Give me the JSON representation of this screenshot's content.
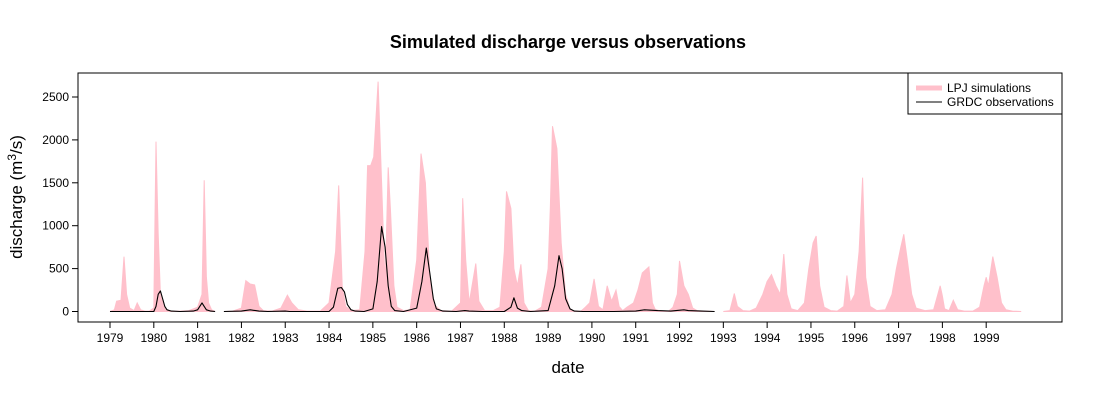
{
  "chart_data": {
    "type": "area",
    "title": "Simulated discharge versus observations",
    "xlabel": "date",
    "ylabel_main": "discharge (m",
    "ylabel_sup": "3",
    "ylabel_end": "/s)",
    "xlim": [
      1979.0,
      2000.0
    ],
    "ylim": [
      0,
      2700
    ],
    "x_ticks": [
      1979,
      1980,
      1981,
      1982,
      1983,
      1984,
      1985,
      1986,
      1987,
      1988,
      1989,
      1990,
      1991,
      1992,
      1993,
      1994,
      1995,
      1996,
      1997,
      1998,
      1999
    ],
    "x_tick_labels": [
      "1979",
      "1980",
      "1981",
      "1982",
      "1983",
      "1984",
      "1985",
      "1986",
      "1987",
      "1988",
      "1989",
      "1990",
      "1991",
      "1992",
      "1993",
      "1994",
      "1995",
      "1996",
      "1997",
      "1998",
      "1999"
    ],
    "y_ticks": [
      0,
      500,
      1000,
      1500,
      2000,
      2500
    ],
    "y_tick_labels": [
      "0",
      "500",
      "1000",
      "1500",
      "2000",
      "2500"
    ],
    "legend": {
      "position": "top-right",
      "entries": [
        {
          "label": "LPJ simulations",
          "color": "#ffc0cb"
        },
        {
          "label": "GRDC observations",
          "color": "#000000"
        }
      ]
    },
    "series": [
      {
        "name": "LPJ simulations",
        "kind": "band",
        "color": "#ffc0cb",
        "segments": [
          [
            [
              1979.0,
              0
            ],
            [
              1979.1,
              20
            ],
            [
              1979.15,
              120
            ],
            [
              1979.25,
              130
            ],
            [
              1979.32,
              640
            ],
            [
              1979.38,
              200
            ],
            [
              1979.45,
              40
            ],
            [
              1979.55,
              10
            ],
            [
              1979.62,
              100
            ],
            [
              1979.7,
              20
            ],
            [
              1979.8,
              5
            ],
            [
              1979.9,
              5
            ],
            [
              1980.0,
              40
            ],
            [
              1980.05,
              1980
            ],
            [
              1980.1,
              900
            ],
            [
              1980.15,
              200
            ],
            [
              1980.25,
              30
            ],
            [
              1980.4,
              5
            ],
            [
              1980.6,
              5
            ],
            [
              1980.8,
              10
            ],
            [
              1981.0,
              50
            ],
            [
              1981.1,
              200
            ],
            [
              1981.15,
              1530
            ],
            [
              1981.2,
              400
            ],
            [
              1981.25,
              100
            ],
            [
              1981.32,
              20
            ],
            [
              1981.4,
              0
            ]
          ],
          [
            [
              1981.6,
              0
            ],
            [
              1981.8,
              5
            ],
            [
              1982.0,
              40
            ],
            [
              1982.1,
              360
            ],
            [
              1982.2,
              320
            ],
            [
              1982.3,
              310
            ],
            [
              1982.4,
              60
            ],
            [
              1982.5,
              10
            ],
            [
              1982.7,
              5
            ],
            [
              1982.9,
              40
            ],
            [
              1983.05,
              190
            ],
            [
              1983.15,
              100
            ],
            [
              1983.3,
              20
            ],
            [
              1983.5,
              5
            ],
            [
              1983.8,
              5
            ],
            [
              1984.0,
              100
            ],
            [
              1984.15,
              700
            ],
            [
              1984.22,
              1470
            ],
            [
              1984.3,
              300
            ],
            [
              1984.38,
              60
            ],
            [
              1984.5,
              10
            ],
            [
              1984.7,
              20
            ],
            [
              1984.82,
              700
            ],
            [
              1984.88,
              1700
            ],
            [
              1984.95,
              1700
            ],
            [
              1985.02,
              1800
            ],
            [
              1985.12,
              2680
            ],
            [
              1985.2,
              1500
            ],
            [
              1985.28,
              300
            ],
            [
              1985.35,
              1680
            ],
            [
              1985.4,
              1200
            ],
            [
              1985.48,
              300
            ],
            [
              1985.55,
              50
            ],
            [
              1985.7,
              10
            ],
            [
              1985.85,
              20
            ],
            [
              1986.0,
              600
            ],
            [
              1986.1,
              1840
            ],
            [
              1986.2,
              1500
            ],
            [
              1986.3,
              400
            ],
            [
              1986.4,
              80
            ],
            [
              1986.55,
              10
            ],
            [
              1986.8,
              5
            ],
            [
              1987.0,
              100
            ],
            [
              1987.05,
              1320
            ],
            [
              1987.12,
              600
            ],
            [
              1987.2,
              100
            ],
            [
              1987.35,
              560
            ],
            [
              1987.42,
              120
            ],
            [
              1987.55,
              10
            ],
            [
              1987.75,
              10
            ],
            [
              1987.9,
              50
            ],
            [
              1988.0,
              700
            ],
            [
              1988.05,
              1400
            ],
            [
              1988.15,
              1200
            ],
            [
              1988.22,
              500
            ],
            [
              1988.3,
              300
            ],
            [
              1988.38,
              550
            ],
            [
              1988.45,
              100
            ],
            [
              1988.55,
              10
            ],
            [
              1988.7,
              5
            ],
            [
              1988.85,
              50
            ],
            [
              1989.0,
              500
            ],
            [
              1989.05,
              1200
            ],
            [
              1989.1,
              2160
            ],
            [
              1989.2,
              1900
            ],
            [
              1989.3,
              800
            ],
            [
              1989.4,
              200
            ],
            [
              1989.5,
              30
            ],
            [
              1989.6,
              5
            ],
            [
              1989.75,
              5
            ],
            [
              1989.85,
              50
            ],
            [
              1989.95,
              100
            ],
            [
              1990.05,
              380
            ],
            [
              1990.15,
              60
            ],
            [
              1990.25,
              20
            ],
            [
              1990.35,
              300
            ],
            [
              1990.45,
              120
            ],
            [
              1990.55,
              250
            ],
            [
              1990.62,
              60
            ],
            [
              1990.7,
              10
            ],
            [
              1990.8,
              50
            ],
            [
              1990.95,
              100
            ],
            [
              1991.05,
              250
            ],
            [
              1991.15,
              450
            ],
            [
              1991.3,
              520
            ],
            [
              1991.38,
              100
            ],
            [
              1991.45,
              20
            ],
            [
              1991.6,
              5
            ],
            [
              1991.75,
              5
            ],
            [
              1991.85,
              50
            ],
            [
              1991.95,
              200
            ],
            [
              1992.0,
              590
            ],
            [
              1992.1,
              300
            ],
            [
              1992.2,
              200
            ],
            [
              1992.3,
              40
            ],
            [
              1992.4,
              10
            ],
            [
              1992.6,
              5
            ],
            [
              1992.8,
              0
            ]
          ],
          [
            [
              1993.0,
              0
            ],
            [
              1993.15,
              10
            ],
            [
              1993.25,
              210
            ],
            [
              1993.32,
              60
            ],
            [
              1993.45,
              10
            ],
            [
              1993.6,
              5
            ],
            [
              1993.75,
              40
            ],
            [
              1993.9,
              200
            ],
            [
              1994.0,
              350
            ],
            [
              1994.1,
              430
            ],
            [
              1994.2,
              300
            ],
            [
              1994.3,
              200
            ],
            [
              1994.38,
              670
            ],
            [
              1994.45,
              200
            ],
            [
              1994.55,
              30
            ],
            [
              1994.7,
              10
            ],
            [
              1994.85,
              100
            ],
            [
              1994.95,
              500
            ],
            [
              1995.05,
              800
            ],
            [
              1995.12,
              880
            ],
            [
              1995.2,
              300
            ],
            [
              1995.3,
              50
            ],
            [
              1995.45,
              10
            ],
            [
              1995.6,
              5
            ],
            [
              1995.75,
              60
            ],
            [
              1995.82,
              420
            ],
            [
              1995.9,
              100
            ],
            [
              1996.0,
              200
            ],
            [
              1996.1,
              700
            ],
            [
              1996.18,
              1560
            ],
            [
              1996.25,
              400
            ],
            [
              1996.35,
              60
            ],
            [
              1996.5,
              10
            ],
            [
              1996.7,
              20
            ],
            [
              1996.85,
              200
            ],
            [
              1996.95,
              500
            ],
            [
              1997.05,
              750
            ],
            [
              1997.12,
              900
            ],
            [
              1997.2,
              600
            ],
            [
              1997.3,
              200
            ],
            [
              1997.4,
              40
            ],
            [
              1997.6,
              10
            ],
            [
              1997.8,
              20
            ],
            [
              1997.95,
              300
            ],
            [
              1998.0,
              180
            ],
            [
              1998.05,
              30
            ],
            [
              1998.15,
              10
            ],
            [
              1998.25,
              130
            ],
            [
              1998.35,
              20
            ],
            [
              1998.5,
              5
            ],
            [
              1998.7,
              5
            ],
            [
              1998.85,
              50
            ],
            [
              1998.95,
              300
            ],
            [
              1999.0,
              400
            ],
            [
              1999.05,
              300
            ],
            [
              1999.15,
              640
            ],
            [
              1999.25,
              400
            ],
            [
              1999.35,
              100
            ],
            [
              1999.45,
              20
            ],
            [
              1999.6,
              5
            ],
            [
              1999.8,
              0
            ]
          ]
        ]
      },
      {
        "name": "GRDC observations",
        "kind": "line",
        "color": "#000000",
        "segments": [
          [
            [
              1979.0,
              0
            ],
            [
              1979.5,
              0
            ],
            [
              1980.0,
              0
            ],
            [
              1980.05,
              60
            ],
            [
              1980.1,
              200
            ],
            [
              1980.15,
              240
            ],
            [
              1980.2,
              150
            ],
            [
              1980.25,
              60
            ],
            [
              1980.3,
              20
            ],
            [
              1980.4,
              5
            ],
            [
              1980.6,
              0
            ],
            [
              1980.9,
              5
            ],
            [
              1981.0,
              20
            ],
            [
              1981.1,
              100
            ],
            [
              1981.15,
              60
            ],
            [
              1981.2,
              20
            ],
            [
              1981.3,
              5
            ],
            [
              1981.4,
              0
            ]
          ],
          [
            [
              1981.6,
              0
            ],
            [
              1982.0,
              5
            ],
            [
              1982.2,
              20
            ],
            [
              1982.4,
              5
            ],
            [
              1982.6,
              0
            ],
            [
              1983.0,
              5
            ],
            [
              1983.1,
              0
            ],
            [
              1984.0,
              0
            ],
            [
              1984.1,
              50
            ],
            [
              1984.2,
              270
            ],
            [
              1984.28,
              280
            ],
            [
              1984.35,
              230
            ],
            [
              1984.42,
              80
            ],
            [
              1984.5,
              20
            ],
            [
              1984.6,
              5
            ],
            [
              1984.8,
              0
            ],
            [
              1985.0,
              30
            ],
            [
              1985.1,
              350
            ],
            [
              1985.2,
              990
            ],
            [
              1985.28,
              750
            ],
            [
              1985.35,
              300
            ],
            [
              1985.42,
              60
            ],
            [
              1985.5,
              10
            ],
            [
              1985.7,
              0
            ],
            [
              1986.0,
              40
            ],
            [
              1986.12,
              350
            ],
            [
              1986.22,
              740
            ],
            [
              1986.3,
              450
            ],
            [
              1986.38,
              150
            ],
            [
              1986.45,
              30
            ],
            [
              1986.6,
              5
            ],
            [
              1986.9,
              0
            ],
            [
              1987.1,
              10
            ],
            [
              1987.2,
              5
            ],
            [
              1987.5,
              0
            ],
            [
              1988.0,
              0
            ],
            [
              1988.15,
              50
            ],
            [
              1988.22,
              160
            ],
            [
              1988.3,
              40
            ],
            [
              1988.4,
              10
            ],
            [
              1988.6,
              0
            ],
            [
              1989.0,
              10
            ],
            [
              1989.15,
              300
            ],
            [
              1989.25,
              650
            ],
            [
              1989.32,
              500
            ],
            [
              1989.4,
              150
            ],
            [
              1989.5,
              30
            ],
            [
              1989.6,
              5
            ],
            [
              1989.8,
              0
            ],
            [
              1990.5,
              0
            ],
            [
              1991.0,
              5
            ],
            [
              1991.2,
              20
            ],
            [
              1991.5,
              10
            ],
            [
              1991.8,
              5
            ],
            [
              1992.1,
              20
            ],
            [
              1992.2,
              10
            ],
            [
              1992.5,
              5
            ],
            [
              1992.8,
              0
            ]
          ]
        ]
      }
    ]
  }
}
